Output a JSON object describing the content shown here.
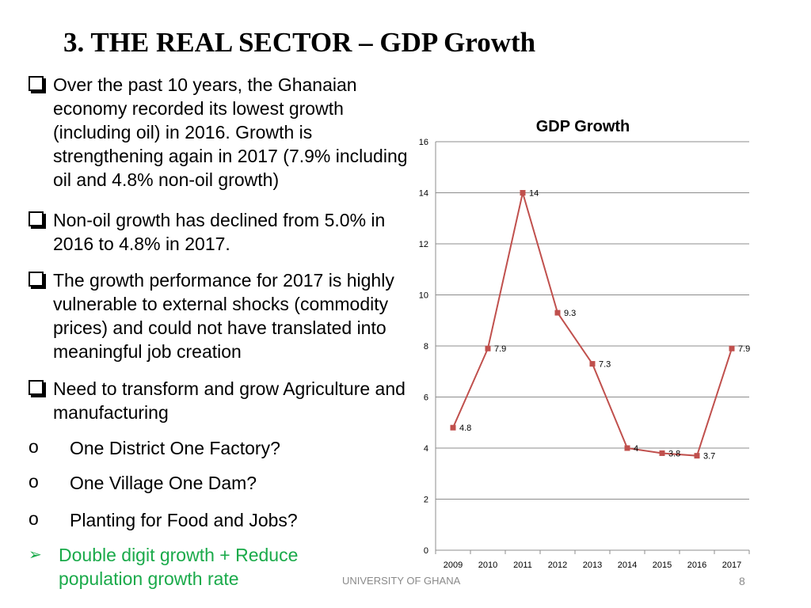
{
  "slide": {
    "title": "3. THE REAL SECTOR – GDP Growth",
    "bullets": [
      "Over the past 10 years, the Ghanaian economy recorded its lowest growth (including oil) in 2016.  Growth is strengthening again in 2017 (7.9% including oil and 4.8% non-oil growth)",
      " Non-oil growth has declined from 5.0% in 2016 to 4.8% in 2017.",
      "The growth performance for 2017 is highly vulnerable to external shocks (commodity prices) and could not have translated into meaningful job creation",
      "Need to transform and grow Agriculture and manufacturing"
    ],
    "sub_bullets": [
      "One District One Factory?",
      "One Village One Dam?",
      "Planting for Food and Jobs?"
    ],
    "highlight": "Double digit growth + Reduce population growth rate",
    "footer": "UNIVERSITY OF GHANA",
    "page_number": "8",
    "colors": {
      "highlight": "#1aaa4a",
      "series": "#c0504d"
    }
  },
  "chart_data": {
    "type": "line",
    "title": "GDP Growth",
    "categories": [
      "2009",
      "2010",
      "2011",
      "2012",
      "2013",
      "2014",
      "2015",
      "2016",
      "2017"
    ],
    "series": [
      {
        "values": [
          4.8,
          7.9,
          14,
          9.3,
          7.3,
          4,
          3.8,
          3.7,
          7.9
        ],
        "labels": [
          "4.8",
          "7.9",
          "14",
          "9.3",
          "7.3",
          "4",
          "3.8",
          "3.7",
          "7.9"
        ]
      }
    ],
    "ylim": [
      0,
      16
    ],
    "yticks": [
      "0",
      "2",
      "4",
      "6",
      "8",
      "10",
      "12",
      "14",
      "16"
    ],
    "grid": true,
    "legend": "none"
  }
}
